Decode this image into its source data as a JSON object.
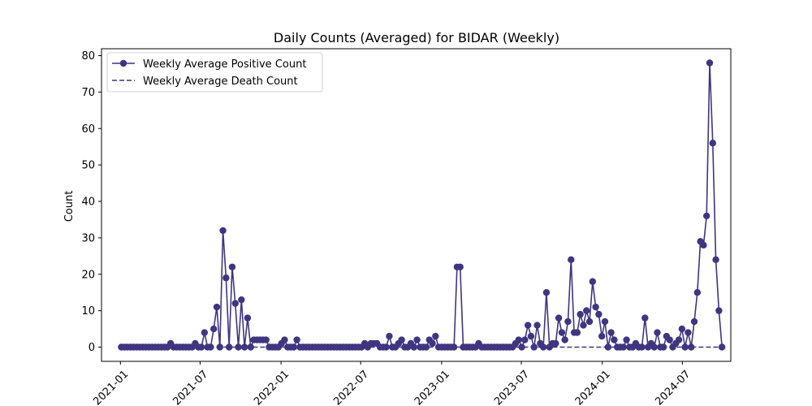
{
  "chart_data": {
    "type": "line",
    "title": "Daily Counts (Averaged) for BIDAR (Weekly)",
    "xlabel": "",
    "ylabel": "Count",
    "x_axis": {
      "type": "date",
      "range": [
        "2020-11-19",
        "2024-10-19"
      ],
      "ticks": [
        "2021-01",
        "2021-07",
        "2022-01",
        "2022-07",
        "2023-01",
        "2023-07",
        "2024-01",
        "2024-07"
      ]
    },
    "y_axis": {
      "range": [
        -3.9,
        81.9
      ],
      "ticks": [
        0,
        10,
        20,
        30,
        40,
        50,
        60,
        70,
        80
      ]
    },
    "grid": false,
    "legend": "top-left",
    "series_start": "2021-01-03",
    "series_interval_days": 7,
    "series": [
      {
        "name": "Weekly Average Positive Count",
        "style": "solid-marker",
        "color": "#3f3580",
        "values": [
          0,
          0,
          0,
          0,
          0,
          0,
          0,
          0,
          0,
          0,
          0,
          0,
          0,
          0,
          0,
          0,
          1,
          0,
          0,
          0,
          0,
          0,
          0,
          0,
          1,
          0,
          0,
          4,
          0,
          0,
          5,
          11,
          0,
          32,
          19,
          0,
          22,
          12,
          0,
          13,
          0,
          8,
          0,
          2,
          2,
          2,
          2,
          2,
          0,
          0,
          0,
          0,
          1,
          2,
          0,
          0,
          0,
          2,
          0,
          0,
          0,
          0,
          0,
          0,
          0,
          0,
          0,
          0,
          0,
          0,
          0,
          0,
          0,
          0,
          0,
          0,
          0,
          0,
          0,
          1,
          0,
          1,
          1,
          1,
          0,
          0,
          0,
          3,
          0,
          0,
          1,
          2,
          0,
          0,
          1,
          0,
          2,
          0,
          0,
          0,
          2,
          1,
          3,
          0,
          0,
          0,
          0,
          0,
          0,
          22,
          22,
          0,
          0,
          0,
          0,
          0,
          1,
          0,
          0,
          0,
          0,
          0,
          0,
          0,
          0,
          0,
          0,
          0,
          1,
          2,
          0,
          2,
          6,
          3,
          0,
          6,
          1,
          0,
          15,
          0,
          1,
          1,
          8,
          4,
          2,
          7,
          24,
          4,
          4,
          9,
          6,
          10,
          7,
          18,
          11,
          9,
          3,
          7,
          0,
          4,
          2,
          0,
          0,
          0,
          2,
          0,
          0,
          1,
          0,
          0,
          8,
          0,
          1,
          0,
          4,
          0,
          0,
          3,
          2,
          0,
          1,
          2,
          5,
          0,
          4,
          0,
          7,
          15,
          29,
          28,
          36,
          78,
          56,
          24,
          10,
          0
        ]
      },
      {
        "name": "Weekly Average Death Count",
        "style": "dashed",
        "color": "#3f3580",
        "constant_value": 0
      }
    ]
  }
}
